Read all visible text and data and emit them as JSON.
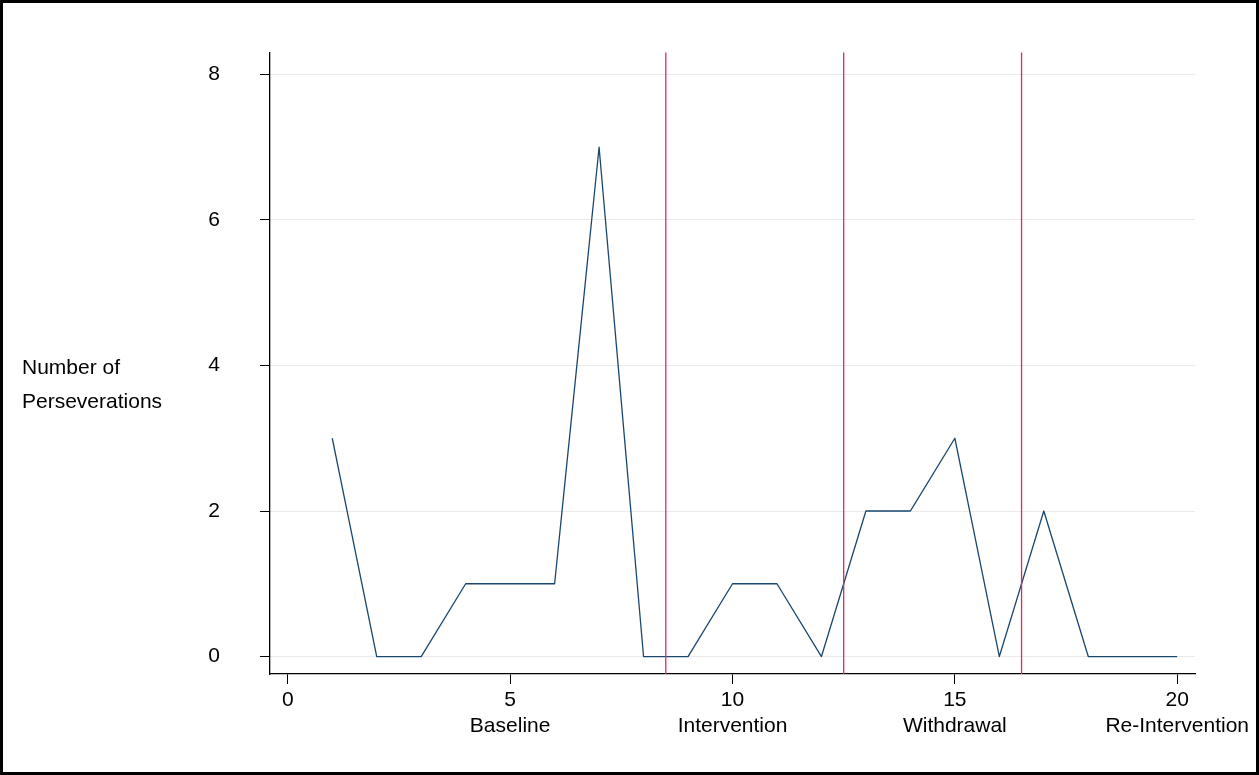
{
  "chart_data": {
    "type": "line",
    "ylabel": "Number of\nPerseverations",
    "x": [
      1,
      2,
      3,
      4,
      5,
      6,
      7,
      8,
      9,
      10,
      11,
      12,
      13,
      14,
      15,
      16,
      17,
      18,
      19,
      20
    ],
    "series": [
      {
        "color": "#1a476f",
        "values": [
          3,
          0,
          0,
          1,
          1,
          1,
          7,
          0,
          0,
          1,
          1,
          0,
          2,
          2,
          3,
          0,
          2,
          0,
          0,
          0
        ]
      }
    ],
    "xlim": [
      -0.4,
      20.4
    ],
    "xticks": [
      0,
      {
        "value": 5,
        "label": "5\nBaseline"
      },
      {
        "value": 10,
        "label": "10\nIntervention"
      },
      {
        "value": 15,
        "label": "15\nWithdrawal"
      },
      {
        "value": 20,
        "label": "20\nRe-Intervention"
      }
    ],
    "ylim": [
      -0.24,
      8.3
    ],
    "yticks": [
      0,
      2,
      4,
      6,
      8
    ],
    "ref_lines": [
      {
        "axis": "x",
        "value": 8.5,
        "color": "#d62d5f"
      },
      {
        "axis": "x",
        "value": 12.5,
        "color": "#d62d5f"
      },
      {
        "axis": "x",
        "value": 16.5,
        "color": "#d62d5f"
      }
    ],
    "grid": "y",
    "marker": "none",
    "line_style": "solid",
    "legend": false
  }
}
